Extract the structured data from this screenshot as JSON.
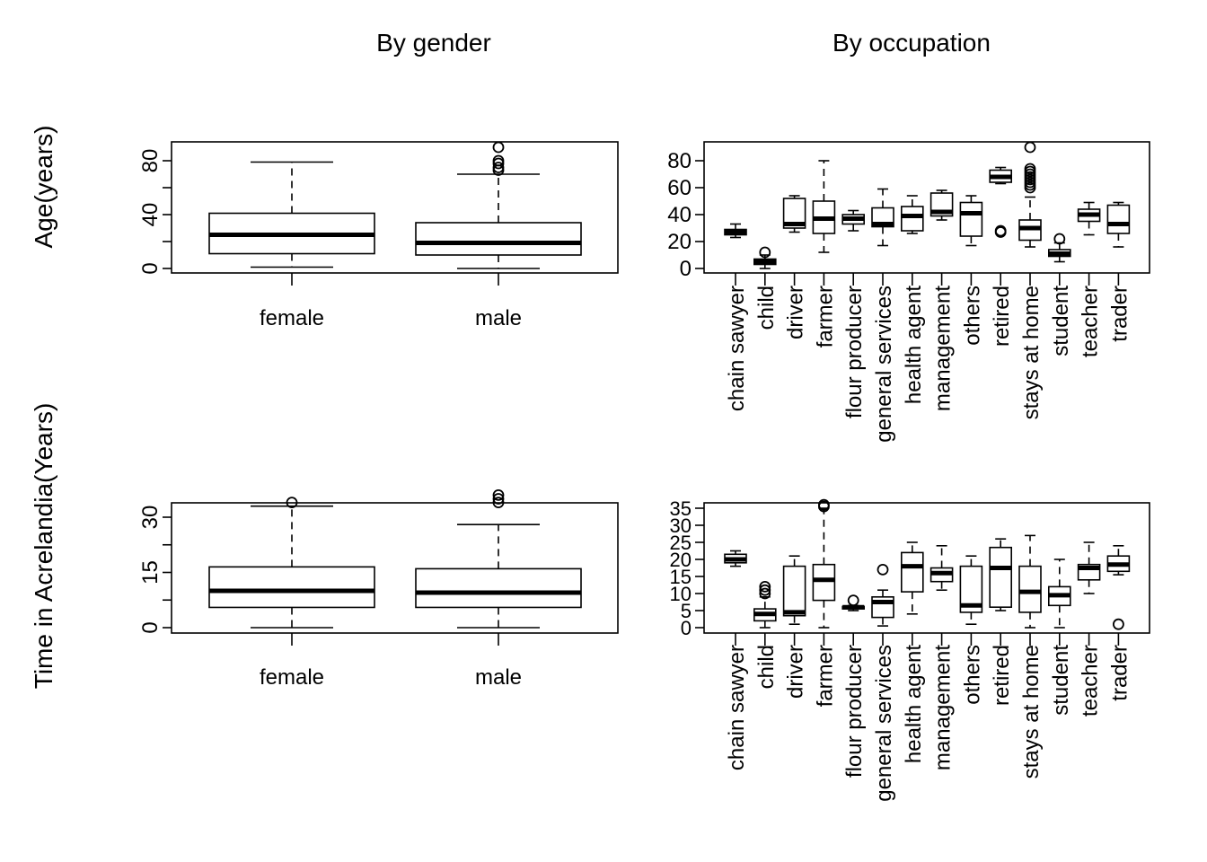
{
  "column_titles": {
    "left": "By gender",
    "right": "By occupation"
  },
  "row_labels": {
    "top": "Age(years)",
    "bottom": "Time in Acrelandia(Years)"
  },
  "chart_data": [
    {
      "type": "boxplot",
      "panel": "age-by-gender",
      "categories": [
        "female",
        "male"
      ],
      "y_ticks": [
        "0",
        "40",
        "80"
      ],
      "ylim": [
        0,
        90
      ],
      "boxes": [
        {
          "category": "female",
          "lower_whisker": 1,
          "q1": 11,
          "median": 25,
          "q3": 41,
          "upper_whisker": 79,
          "outliers": []
        },
        {
          "category": "male",
          "lower_whisker": 0,
          "q1": 10,
          "median": 19,
          "q3": 34,
          "upper_whisker": 70,
          "outliers": [
            73,
            75,
            78,
            80,
            90
          ]
        }
      ]
    },
    {
      "type": "boxplot",
      "panel": "age-by-occupation",
      "categories": [
        "chain sawyer",
        "child",
        "driver",
        "farmer",
        "flour producer",
        "general services",
        "health agent",
        "management",
        "others",
        "retired",
        "stays at home",
        "student",
        "teacher",
        "trader"
      ],
      "y_ticks": [
        "0",
        "20",
        "40",
        "60",
        "80"
      ],
      "ylim": [
        0,
        90
      ],
      "boxes": [
        {
          "category": "chain sawyer",
          "lower_whisker": 23,
          "q1": 25,
          "median": 27,
          "q3": 29,
          "upper_whisker": 33,
          "outliers": []
        },
        {
          "category": "child",
          "lower_whisker": 0,
          "q1": 3,
          "median": 5,
          "q3": 7,
          "upper_whisker": 10,
          "outliers": [
            12
          ]
        },
        {
          "category": "driver",
          "lower_whisker": 27,
          "q1": 30,
          "median": 33,
          "q3": 52,
          "upper_whisker": 54,
          "outliers": []
        },
        {
          "category": "farmer",
          "lower_whisker": 12,
          "q1": 26,
          "median": 37,
          "q3": 50,
          "upper_whisker": 80,
          "outliers": []
        },
        {
          "category": "flour producer",
          "lower_whisker": 28,
          "q1": 33,
          "median": 37,
          "q3": 40,
          "upper_whisker": 43,
          "outliers": []
        },
        {
          "category": "general services",
          "lower_whisker": 17,
          "q1": 31,
          "median": 33,
          "q3": 45,
          "upper_whisker": 59,
          "outliers": []
        },
        {
          "category": "health agent",
          "lower_whisker": 26,
          "q1": 28,
          "median": 39,
          "q3": 46,
          "upper_whisker": 54,
          "outliers": []
        },
        {
          "category": "management",
          "lower_whisker": 36,
          "q1": 39,
          "median": 42,
          "q3": 56,
          "upper_whisker": 58,
          "outliers": []
        },
        {
          "category": "others",
          "lower_whisker": 17,
          "q1": 24,
          "median": 41,
          "q3": 49,
          "upper_whisker": 54,
          "outliers": []
        },
        {
          "category": "retired",
          "lower_whisker": 63,
          "q1": 64,
          "median": 68,
          "q3": 73,
          "upper_whisker": 75,
          "outliers": [
            27,
            28
          ]
        },
        {
          "category": "stays at home",
          "lower_whisker": 16,
          "q1": 21,
          "median": 30,
          "q3": 36,
          "upper_whisker": 53,
          "outliers": [
            60,
            62,
            64,
            66,
            68,
            70,
            72,
            74,
            90
          ]
        },
        {
          "category": "student",
          "lower_whisker": 5,
          "q1": 9,
          "median": 11,
          "q3": 14,
          "upper_whisker": 19,
          "outliers": [
            22
          ]
        },
        {
          "category": "teacher",
          "lower_whisker": 25,
          "q1": 35,
          "median": 40,
          "q3": 44,
          "upper_whisker": 49,
          "outliers": []
        },
        {
          "category": "trader",
          "lower_whisker": 16,
          "q1": 26,
          "median": 33,
          "q3": 47,
          "upper_whisker": 49,
          "outliers": []
        }
      ]
    },
    {
      "type": "boxplot",
      "panel": "time-by-gender",
      "categories": [
        "female",
        "male"
      ],
      "y_ticks": [
        "0",
        "15",
        "30"
      ],
      "ylim": [
        0,
        36
      ],
      "boxes": [
        {
          "category": "female",
          "lower_whisker": 0,
          "q1": 5.5,
          "median": 10,
          "q3": 16.5,
          "upper_whisker": 33,
          "outliers": [
            34
          ]
        },
        {
          "category": "male",
          "lower_whisker": 0,
          "q1": 5.5,
          "median": 9.5,
          "q3": 16,
          "upper_whisker": 28,
          "outliers": [
            34,
            35,
            36
          ]
        }
      ]
    },
    {
      "type": "boxplot",
      "panel": "time-by-occupation",
      "categories": [
        "chain sawyer",
        "child",
        "driver",
        "farmer",
        "flour producer",
        "general services",
        "health agent",
        "management",
        "others",
        "retired",
        "stays at home",
        "student",
        "teacher",
        "trader"
      ],
      "y_ticks": [
        "0",
        "5",
        "10",
        "15",
        "20",
        "25",
        "30",
        "35"
      ],
      "ylim": [
        0,
        36
      ],
      "boxes": [
        {
          "category": "chain sawyer",
          "lower_whisker": 18,
          "q1": 19,
          "median": 20,
          "q3": 21.5,
          "upper_whisker": 22.5,
          "outliers": []
        },
        {
          "category": "child",
          "lower_whisker": 0,
          "q1": 2,
          "median": 4,
          "q3": 5.5,
          "upper_whisker": 9,
          "outliers": [
            10,
            11,
            12
          ]
        },
        {
          "category": "driver",
          "lower_whisker": 1,
          "q1": 3.5,
          "median": 4.5,
          "q3": 18,
          "upper_whisker": 21,
          "outliers": []
        },
        {
          "category": "farmer",
          "lower_whisker": 0,
          "q1": 8,
          "median": 14,
          "q3": 18.5,
          "upper_whisker": 35,
          "outliers": [
            35.5,
            36
          ]
        },
        {
          "category": "flour producer",
          "lower_whisker": 5,
          "q1": 5.5,
          "median": 6,
          "q3": 6.2,
          "upper_whisker": 6.5,
          "outliers": [
            8
          ]
        },
        {
          "category": "general services",
          "lower_whisker": 0.5,
          "q1": 3,
          "median": 7.5,
          "q3": 9,
          "upper_whisker": 11,
          "outliers": [
            17
          ]
        },
        {
          "category": "health agent",
          "lower_whisker": 4,
          "q1": 10.5,
          "median": 18,
          "q3": 22,
          "upper_whisker": 25,
          "outliers": []
        },
        {
          "category": "management",
          "lower_whisker": 11,
          "q1": 13.5,
          "median": 16,
          "q3": 17.5,
          "upper_whisker": 24,
          "outliers": []
        },
        {
          "category": "others",
          "lower_whisker": 1,
          "q1": 4.5,
          "median": 6.5,
          "q3": 18,
          "upper_whisker": 21,
          "outliers": []
        },
        {
          "category": "retired",
          "lower_whisker": 5,
          "q1": 6,
          "median": 17.5,
          "q3": 23.5,
          "upper_whisker": 26,
          "outliers": []
        },
        {
          "category": "stays at home",
          "lower_whisker": 0,
          "q1": 4.5,
          "median": 10.5,
          "q3": 18,
          "upper_whisker": 27,
          "outliers": []
        },
        {
          "category": "student",
          "lower_whisker": 0,
          "q1": 6.5,
          "median": 9.5,
          "q3": 12,
          "upper_whisker": 20,
          "outliers": []
        },
        {
          "category": "teacher",
          "lower_whisker": 10,
          "q1": 14,
          "median": 17.5,
          "q3": 18.5,
          "upper_whisker": 25,
          "outliers": []
        },
        {
          "category": "trader",
          "lower_whisker": 15.5,
          "q1": 16.5,
          "median": 18.5,
          "q3": 21,
          "upper_whisker": 24,
          "outliers": [
            1
          ]
        }
      ]
    }
  ]
}
